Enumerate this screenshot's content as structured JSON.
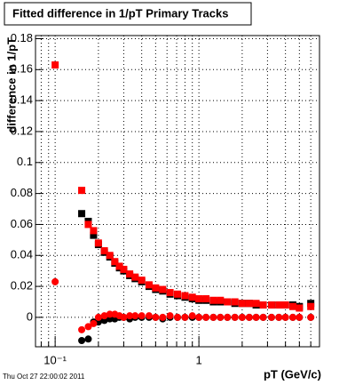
{
  "chart_data": {
    "type": "scatter",
    "title": "Fitted difference in 1/pT  Primary Tracks",
    "x_label": "pT (GeV/c)",
    "y_label": "difference in 1/pT",
    "footer": "Thu Oct 27 22:00:02 2011",
    "log_x": true,
    "grid": true,
    "xlim": [
      0.073,
      6.9
    ],
    "ylim": [
      -0.019,
      0.182
    ],
    "xticks": [
      {
        "value": 0.1,
        "label": "10⁻¹"
      },
      1
    ],
    "xminor": [
      0.08,
      0.09,
      0.2,
      0.3,
      0.4,
      0.5,
      0.6,
      0.7,
      0.8,
      0.9,
      2,
      3,
      4,
      5,
      6
    ],
    "yticks": [
      0,
      0.02,
      0.04,
      0.06,
      0.08,
      0.1,
      0.12,
      0.14,
      0.16,
      0.18
    ],
    "x": [
      0.1,
      0.153,
      0.17,
      0.185,
      0.2,
      0.22,
      0.24,
      0.26,
      0.28,
      0.3,
      0.33,
      0.36,
      0.4,
      0.45,
      0.5,
      0.56,
      0.63,
      0.71,
      0.8,
      0.9,
      1.0,
      1.12,
      1.26,
      1.41,
      1.58,
      1.78,
      2.0,
      2.24,
      2.5,
      2.8,
      3.2,
      3.6,
      4.0,
      4.5,
      5.0,
      6.0
    ],
    "series": [
      {
        "color": "#000000",
        "marker": "square",
        "values": [
          null,
          0.067,
          0.062,
          0.053,
          0.047,
          0.042,
          0.039,
          0.035,
          0.032,
          0.03,
          0.027,
          0.025,
          0.023,
          0.02,
          0.018,
          0.017,
          0.015,
          0.014,
          0.013,
          0.012,
          0.011,
          0.011,
          0.01,
          0.01,
          0.01,
          0.009,
          0.009,
          0.009,
          0.008,
          0.008,
          0.008,
          0.008,
          0.008,
          0.008,
          0.007,
          0.009
        ]
      },
      {
        "color": "#ff0000",
        "marker": "square",
        "values": [
          0.163,
          0.082,
          0.06,
          0.056,
          0.048,
          0.043,
          0.04,
          0.036,
          0.033,
          0.031,
          0.028,
          0.026,
          0.024,
          0.021,
          0.019,
          0.018,
          0.016,
          0.015,
          0.014,
          0.013,
          0.012,
          0.012,
          0.011,
          0.011,
          0.01,
          0.01,
          0.009,
          0.009,
          0.009,
          0.008,
          0.008,
          0.008,
          0.008,
          0.007,
          0.006,
          0.007
        ]
      },
      {
        "color": "#000000",
        "marker": "circle",
        "values": [
          null,
          -0.015,
          -0.014,
          -0.003,
          -0.003,
          -0.002,
          -0.001,
          -0.001,
          0,
          0,
          -0.001,
          0,
          0,
          0,
          0,
          -0.001,
          0,
          0,
          0,
          0,
          0,
          0,
          0,
          0,
          0,
          0,
          0,
          0,
          0,
          0,
          0,
          0,
          0,
          0,
          0,
          0
        ]
      },
      {
        "color": "#ff0000",
        "marker": "circle",
        "values": [
          0.023,
          -0.008,
          -0.006,
          -0.004,
          0,
          0.001,
          0.002,
          0.002,
          0.001,
          0,
          0.001,
          0.001,
          0.001,
          0.001,
          0,
          0,
          0.001,
          0,
          0,
          0.001,
          0,
          0,
          0,
          0,
          0,
          0,
          0,
          0,
          0,
          0,
          0,
          0,
          0,
          0,
          0,
          0
        ]
      }
    ]
  }
}
